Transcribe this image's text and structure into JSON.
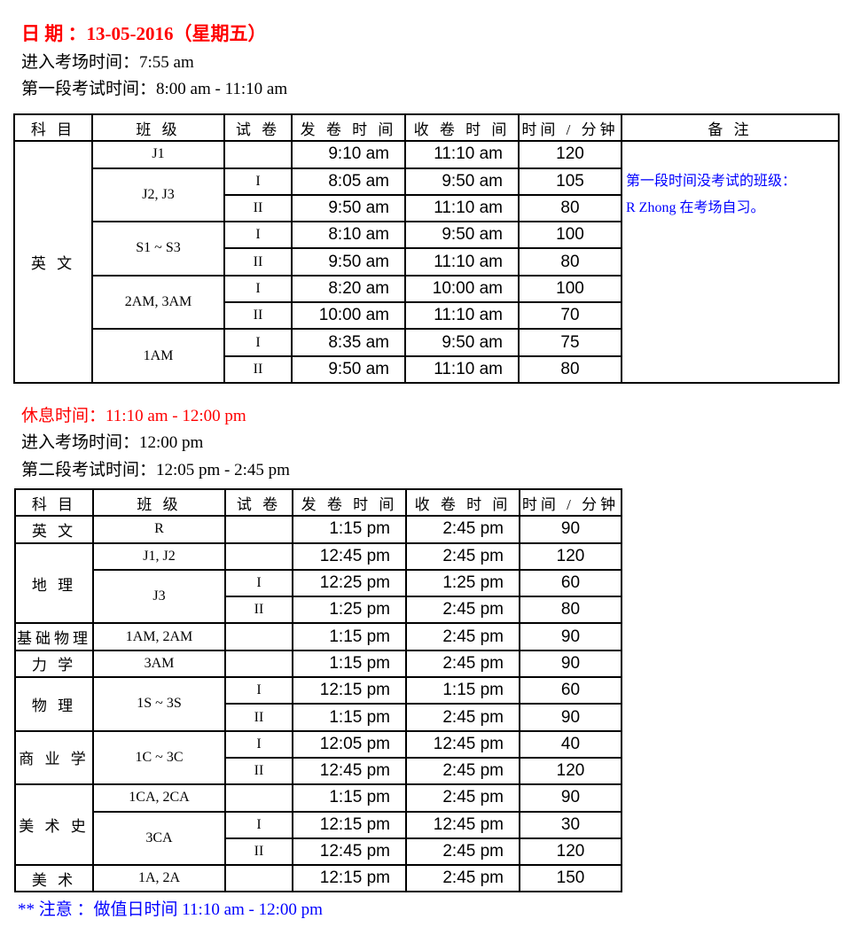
{
  "header": {
    "date_title": "日 期 ：13-05-2016（星期五）",
    "session1_entry": "进入考场时间：7:55 am",
    "session1_time": "第一段考试时间：8:00 am - 11:10 am",
    "break_time": "休息时间：11:10 am - 12:00 pm",
    "session2_entry": "进入考场时间：12:00 pm",
    "session2_time": "第二段考试时间：12:05 pm - 2:45 pm",
    "footnote": "** 注意 ：做值日时间 11:10 am - 12:00 pm"
  },
  "columns": [
    "科 目",
    "班 级",
    "试 卷",
    "发 卷 时 间",
    "收 卷 时 间",
    "时间 / 分钟",
    "备 注"
  ],
  "colors": {
    "title": "#ff0000",
    "note": "#0000ff",
    "border": "#000000"
  },
  "table1": {
    "note_line1": "第一段时间没考试的班级：",
    "note_line2": "R Zhong 在考场自习。",
    "subjects": [
      {
        "subject": "英 文",
        "classes": [
          {
            "class": "J1",
            "papers": [
              {
                "paper": "",
                "start": "9:10 am",
                "end": "11:10 am",
                "minutes": "120"
              }
            ]
          },
          {
            "class": "J2, J3",
            "papers": [
              {
                "paper": "I",
                "start": "8:05 am",
                "end": "9:50 am",
                "minutes": "105"
              },
              {
                "paper": "II",
                "start": "9:50 am",
                "end": "11:10 am",
                "minutes": "80"
              }
            ]
          },
          {
            "class": "S1 ~ S3",
            "papers": [
              {
                "paper": "I",
                "start": "8:10 am",
                "end": "9:50 am",
                "minutes": "100"
              },
              {
                "paper": "II",
                "start": "9:50 am",
                "end": "11:10 am",
                "minutes": "80"
              }
            ]
          },
          {
            "class": "2AM, 3AM",
            "papers": [
              {
                "paper": "I",
                "start": "8:20 am",
                "end": "10:00 am",
                "minutes": "100"
              },
              {
                "paper": "II",
                "start": "10:00 am",
                "end": "11:10 am",
                "minutes": "70"
              }
            ]
          },
          {
            "class": "1AM",
            "papers": [
              {
                "paper": "I",
                "start": "8:35 am",
                "end": "9:50 am",
                "minutes": "75"
              },
              {
                "paper": "II",
                "start": "9:50 am",
                "end": "11:10 am",
                "minutes": "80"
              }
            ]
          }
        ]
      }
    ]
  },
  "table2": {
    "subjects": [
      {
        "subject": "英 文",
        "classes": [
          {
            "class": "R",
            "papers": [
              {
                "paper": "",
                "start": "1:15 pm",
                "end": "2:45 pm",
                "minutes": "90"
              }
            ]
          }
        ]
      },
      {
        "subject": "地 理",
        "classes": [
          {
            "class": "J1, J2",
            "papers": [
              {
                "paper": "",
                "start": "12:45 pm",
                "end": "2:45 pm",
                "minutes": "120"
              }
            ]
          },
          {
            "class": "J3",
            "papers": [
              {
                "paper": "I",
                "start": "12:25 pm",
                "end": "1:25 pm",
                "minutes": "60"
              },
              {
                "paper": "II",
                "start": "1:25 pm",
                "end": "2:45 pm",
                "minutes": "80"
              }
            ]
          }
        ]
      },
      {
        "subject": "基础物理",
        "classes": [
          {
            "class": "1AM, 2AM",
            "papers": [
              {
                "paper": "",
                "start": "1:15 pm",
                "end": "2:45 pm",
                "minutes": "90"
              }
            ]
          }
        ]
      },
      {
        "subject": "力 学",
        "classes": [
          {
            "class": "3AM",
            "papers": [
              {
                "paper": "",
                "start": "1:15 pm",
                "end": "2:45 pm",
                "minutes": "90"
              }
            ]
          }
        ]
      },
      {
        "subject": "物 理",
        "classes": [
          {
            "class": "1S ~ 3S",
            "papers": [
              {
                "paper": "I",
                "start": "12:15 pm",
                "end": "1:15 pm",
                "minutes": "60"
              },
              {
                "paper": "II",
                "start": "1:15 pm",
                "end": "2:45 pm",
                "minutes": "90"
              }
            ]
          }
        ]
      },
      {
        "subject": "商 业 学",
        "classes": [
          {
            "class": "1C ~ 3C",
            "papers": [
              {
                "paper": "I",
                "start": "12:05 pm",
                "end": "12:45 pm",
                "minutes": "40"
              },
              {
                "paper": "II",
                "start": "12:45 pm",
                "end": "2:45 pm",
                "minutes": "120"
              }
            ]
          }
        ]
      },
      {
        "subject": "美 术 史",
        "classes": [
          {
            "class": "1CA, 2CA",
            "papers": [
              {
                "paper": "",
                "start": "1:15 pm",
                "end": "2:45 pm",
                "minutes": "90"
              }
            ]
          },
          {
            "class": "3CA",
            "papers": [
              {
                "paper": "I",
                "start": "12:15 pm",
                "end": "12:45 pm",
                "minutes": "30"
              },
              {
                "paper": "II",
                "start": "12:45 pm",
                "end": "2:45 pm",
                "minutes": "120"
              }
            ]
          }
        ]
      },
      {
        "subject": "美 术",
        "classes": [
          {
            "class": "1A, 2A",
            "papers": [
              {
                "paper": "",
                "start": "12:15 pm",
                "end": "2:45 pm",
                "minutes": "150"
              }
            ]
          }
        ]
      }
    ]
  }
}
